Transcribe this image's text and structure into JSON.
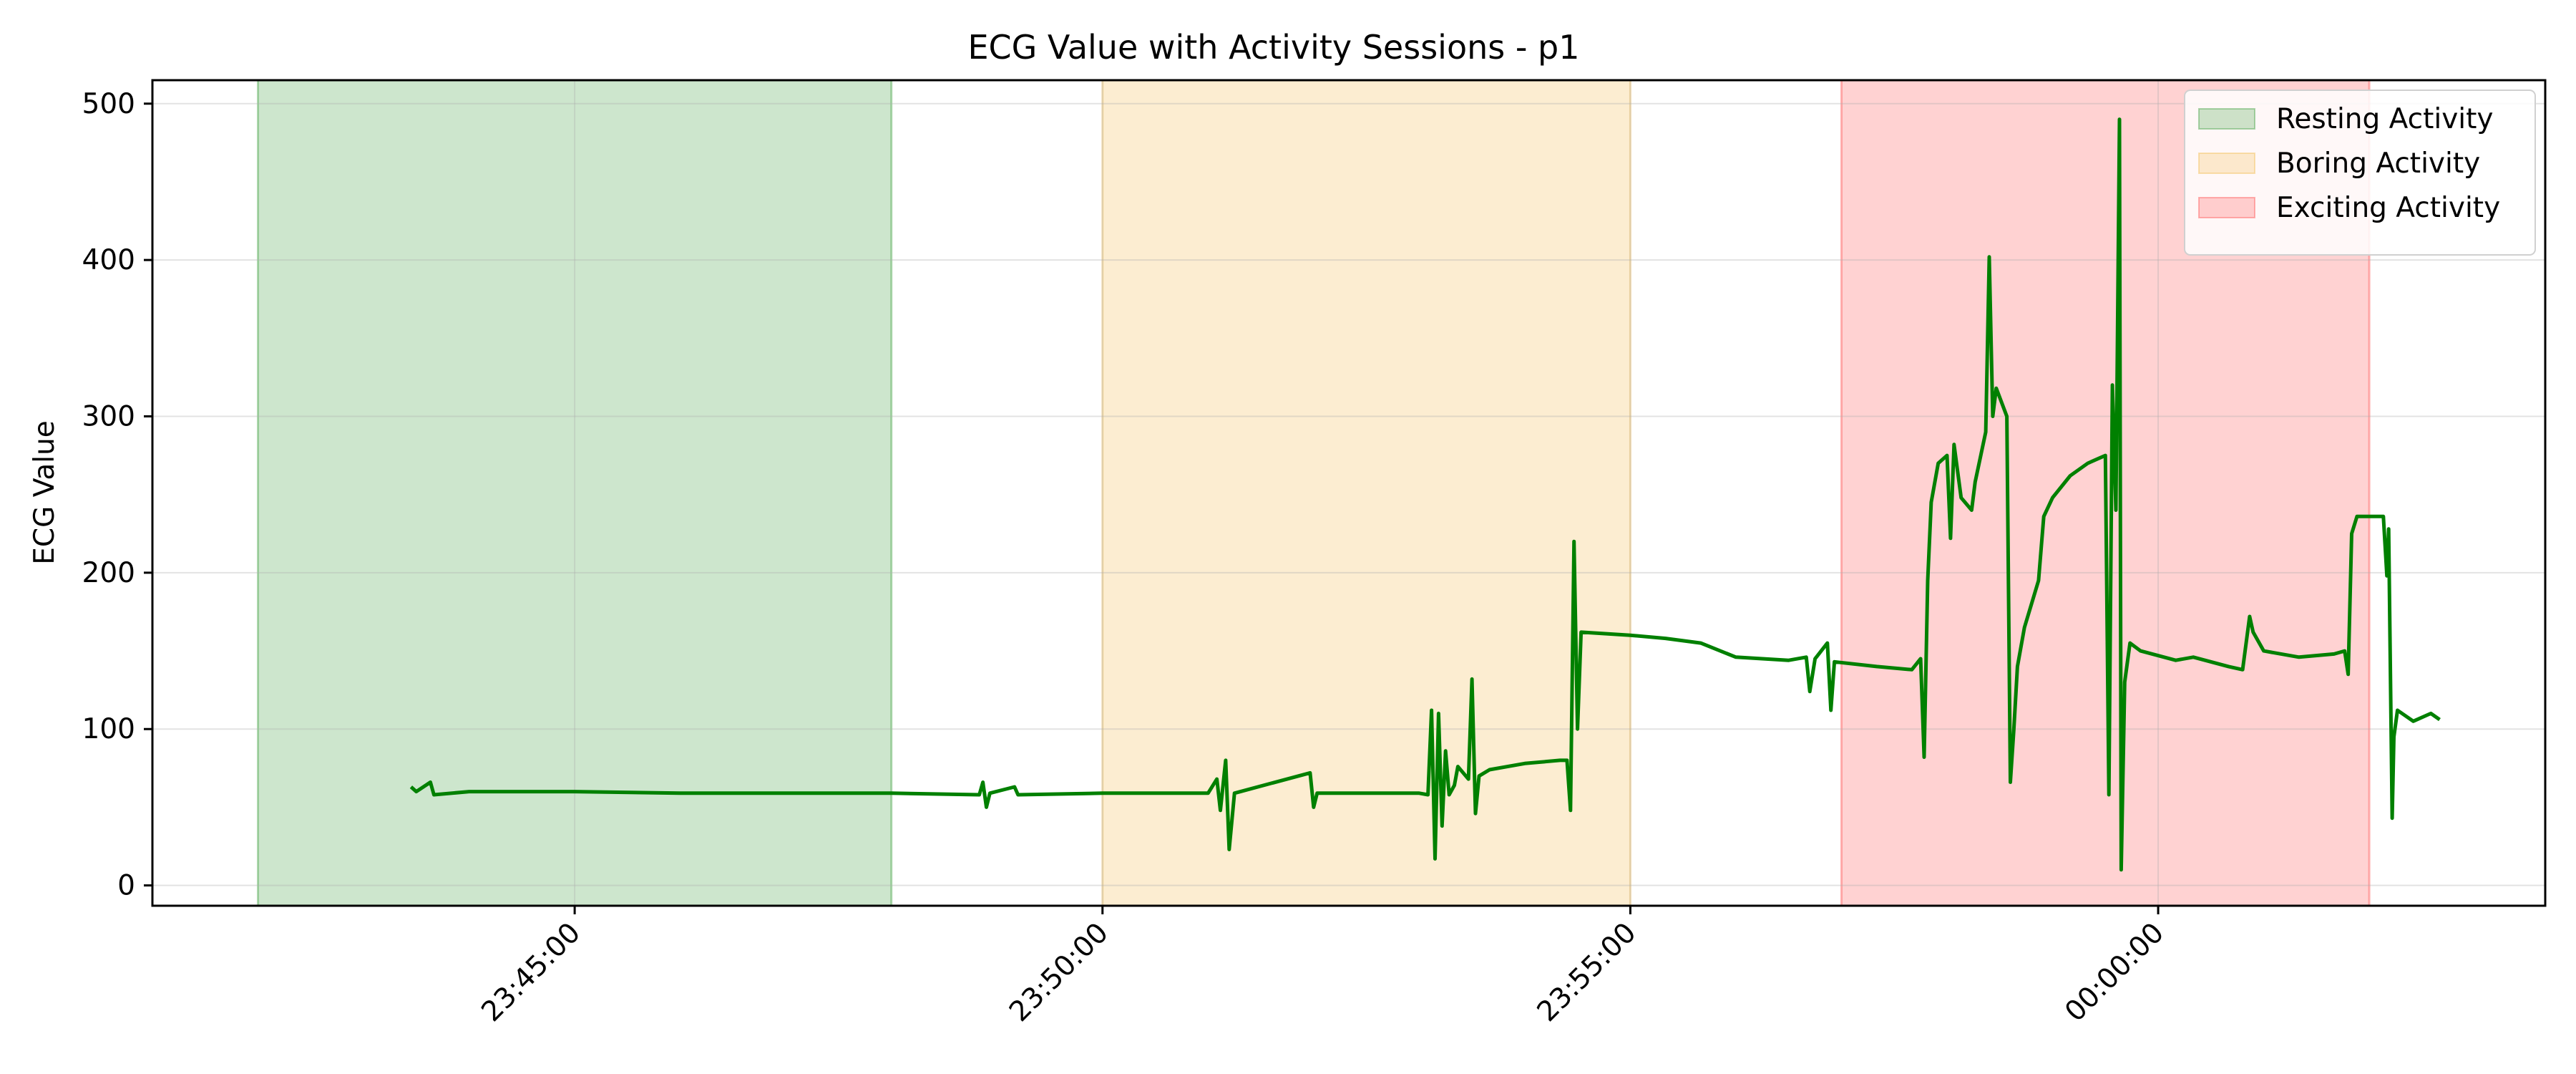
{
  "chart_data": {
    "type": "line",
    "title": "ECG Value with Activity Sessions - p1",
    "xlabel": "",
    "ylabel": "ECG Value",
    "x_axis_type": "time",
    "xlim": [
      "23:41:00",
      "00:03:40"
    ],
    "ylim": [
      -13,
      515
    ],
    "x_ticks": [
      "23:45:00",
      "23:50:00",
      "23:55:00",
      "00:00:00"
    ],
    "y_ticks": [
      0,
      100,
      200,
      300,
      400,
      500
    ],
    "grid": true,
    "legend_position": "top-right",
    "line_color": "#008000",
    "activity_sessions": [
      {
        "name": "Resting Activity",
        "start": "23:42:00",
        "end": "23:48:00",
        "color": "#4ca64c"
      },
      {
        "name": "Boring Activity",
        "start": "23:50:00",
        "end": "23:55:00",
        "color": "#f5c05a"
      },
      {
        "name": "Exciting Activity",
        "start": "23:57:00",
        "end": "00:02:00",
        "color": "#ff5e5e"
      }
    ],
    "series": [
      {
        "points": [
          [
            "23:43:27",
            63
          ],
          [
            "23:43:30",
            60
          ],
          [
            "23:43:38",
            66
          ],
          [
            "23:43:40",
            58
          ],
          [
            "23:44:00",
            60
          ],
          [
            "23:45:00",
            60
          ],
          [
            "23:46:00",
            59
          ],
          [
            "23:47:00",
            59
          ],
          [
            "23:48:00",
            59
          ],
          [
            "23:48:50",
            58
          ],
          [
            "23:48:52",
            66
          ],
          [
            "23:48:54",
            50
          ],
          [
            "23:48:56",
            59
          ],
          [
            "23:49:10",
            63
          ],
          [
            "23:49:12",
            58
          ],
          [
            "23:50:00",
            59
          ],
          [
            "23:51:00",
            59
          ],
          [
            "23:51:05",
            68
          ],
          [
            "23:51:07",
            48
          ],
          [
            "23:51:10",
            80
          ],
          [
            "23:51:12",
            23
          ],
          [
            "23:51:15",
            59
          ],
          [
            "23:51:58",
            72
          ],
          [
            "23:52:00",
            50
          ],
          [
            "23:52:02",
            59
          ],
          [
            "23:53:00",
            59
          ],
          [
            "23:53:05",
            58
          ],
          [
            "23:53:07",
            112
          ],
          [
            "23:53:09",
            17
          ],
          [
            "23:53:11",
            110
          ],
          [
            "23:53:13",
            38
          ],
          [
            "23:53:15",
            86
          ],
          [
            "23:53:17",
            58
          ],
          [
            "23:53:20",
            64
          ],
          [
            "23:53:22",
            76
          ],
          [
            "23:53:28",
            68
          ],
          [
            "23:53:30",
            132
          ],
          [
            "23:53:32",
            46
          ],
          [
            "23:53:34",
            70
          ],
          [
            "23:53:40",
            74
          ],
          [
            "23:54:00",
            78
          ],
          [
            "23:54:20",
            80
          ],
          [
            "23:54:24",
            80
          ],
          [
            "23:54:26",
            48
          ],
          [
            "23:54:28",
            220
          ],
          [
            "23:54:30",
            100
          ],
          [
            "23:54:32",
            162
          ],
          [
            "23:55:00",
            160
          ],
          [
            "23:55:20",
            158
          ],
          [
            "23:55:40",
            155
          ],
          [
            "23:56:00",
            146
          ],
          [
            "23:56:30",
            144
          ],
          [
            "23:56:40",
            146
          ],
          [
            "23:56:42",
            124
          ],
          [
            "23:56:45",
            145
          ],
          [
            "23:56:52",
            155
          ],
          [
            "23:56:54",
            112
          ],
          [
            "23:56:56",
            143
          ],
          [
            "23:57:20",
            140
          ],
          [
            "23:57:40",
            138
          ],
          [
            "23:57:45",
            145
          ],
          [
            "23:57:47",
            82
          ],
          [
            "23:57:49",
            195
          ],
          [
            "23:57:51",
            245
          ],
          [
            "23:57:55",
            270
          ],
          [
            "23:58:00",
            275
          ],
          [
            "23:58:02",
            222
          ],
          [
            "23:58:04",
            282
          ],
          [
            "23:58:08",
            248
          ],
          [
            "23:58:14",
            240
          ],
          [
            "23:58:16",
            258
          ],
          [
            "23:58:22",
            290
          ],
          [
            "23:58:24",
            402
          ],
          [
            "23:58:26",
            300
          ],
          [
            "23:58:28",
            318
          ],
          [
            "23:58:34",
            300
          ],
          [
            "23:58:36",
            66
          ],
          [
            "23:58:38",
            100
          ],
          [
            "23:58:40",
            140
          ],
          [
            "23:58:44",
            165
          ],
          [
            "23:58:52",
            195
          ],
          [
            "23:58:55",
            236
          ],
          [
            "23:59:00",
            248
          ],
          [
            "23:59:10",
            262
          ],
          [
            "23:59:20",
            270
          ],
          [
            "23:59:30",
            275
          ],
          [
            "23:59:32",
            58
          ],
          [
            "23:59:34",
            320
          ],
          [
            "23:59:36",
            240
          ],
          [
            "23:59:38",
            490
          ],
          [
            "23:59:39",
            10
          ],
          [
            "23:59:41",
            130
          ],
          [
            "23:59:44",
            155
          ],
          [
            "23:59:50",
            150
          ],
          [
            "00:00:10",
            144
          ],
          [
            "00:00:20",
            146
          ],
          [
            "00:00:40",
            140
          ],
          [
            "00:00:48",
            138
          ],
          [
            "00:00:52",
            172
          ],
          [
            "00:00:54",
            162
          ],
          [
            "00:01:00",
            150
          ],
          [
            "00:01:20",
            146
          ],
          [
            "00:01:40",
            148
          ],
          [
            "00:01:46",
            150
          ],
          [
            "00:01:48",
            135
          ],
          [
            "00:01:50",
            225
          ],
          [
            "00:01:53",
            236
          ],
          [
            "00:02:00",
            236
          ],
          [
            "00:02:08",
            236
          ],
          [
            "00:02:10",
            198
          ],
          [
            "00:02:11",
            228
          ],
          [
            "00:02:13",
            43
          ],
          [
            "00:02:14",
            95
          ],
          [
            "00:02:16",
            112
          ],
          [
            "00:02:25",
            105
          ],
          [
            "00:02:35",
            110
          ],
          [
            "00:02:40",
            106
          ]
        ]
      }
    ]
  }
}
